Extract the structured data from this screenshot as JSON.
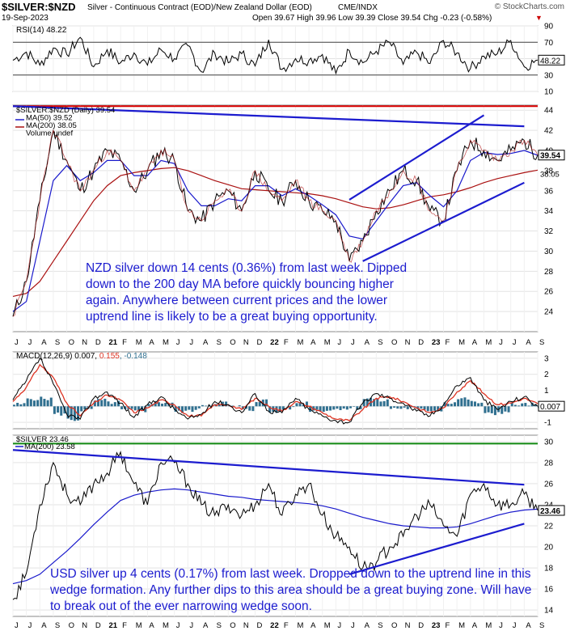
{
  "header": {
    "symbol": "$SILVER:$NZD",
    "description": "Silver - Continuous Contract (EOD)/New Zealand Dollar (EOD)",
    "exchange": "CME/INDX",
    "date": "19-Sep-2023",
    "ohlc": "Open 39.67  High 39.96  Low 39.39  Close 39.54  Chg -0.23 (-0.58%)",
    "chg_arrow": "▼",
    "brand": "© StockCharts.com"
  },
  "colors": {
    "price": "#000000",
    "ma50": "#1a1acc",
    "ma200": "#aa1111",
    "trend": "#1c1ccf",
    "resistance": "#dd0000",
    "green_line": "#118811",
    "macd_hist": "#2f6f8f",
    "signal": "#dd3322",
    "annotation": "#1c1ccf"
  },
  "x_axis_labels": [
    "J",
    "J",
    "A",
    "S",
    "O",
    "N",
    "D",
    "21",
    "F",
    "M",
    "A",
    "M",
    "J",
    "J",
    "A",
    "S",
    "O",
    "N",
    "D",
    "22",
    "F",
    "M",
    "A",
    "M",
    "J",
    "J",
    "A",
    "S",
    "O",
    "N",
    "D",
    "23",
    "F",
    "M",
    "A",
    "M",
    "J",
    "J",
    "A",
    "S"
  ],
  "chart_data": [
    {
      "type": "line",
      "panel": "rsi",
      "legend": "RSI(14) 48.22",
      "ylim": [
        10,
        90
      ],
      "ticks": [
        10,
        30,
        50,
        70,
        90
      ],
      "reference_lines": [
        30,
        70
      ],
      "last_value_label": "48.22",
      "series": [
        {
          "name": "RSI(14)",
          "values": [
            48,
            58,
            42,
            63,
            55,
            76,
            40,
            61,
            45,
            57,
            42,
            61,
            50,
            66,
            34,
            57,
            45,
            56,
            41,
            73,
            37,
            50,
            48,
            55,
            32,
            60,
            45,
            59,
            70,
            43,
            58,
            44,
            72,
            57,
            38,
            53,
            56,
            72,
            40,
            48.22
          ]
        }
      ]
    },
    {
      "type": "line",
      "panel": "price",
      "legend": [
        "$SILVER:$NZD (Daily) 39.54",
        "MA(50) 39.52",
        "MA(200) 38.05",
        "Volume undef"
      ],
      "ylim": [
        22,
        44.5
      ],
      "ticks": [
        24,
        26,
        28,
        30,
        32,
        34,
        36,
        38,
        40,
        42,
        44
      ],
      "last_value_labels": [
        "39.54",
        "38.05"
      ],
      "resistance_level": 44.4,
      "series": [
        {
          "name": "$SILVER:$NZD",
          "values": [
            23.5,
            27,
            35,
            42,
            39,
            36,
            38,
            40,
            39,
            36,
            38,
            40,
            39,
            34,
            33,
            35,
            36,
            34,
            38,
            36,
            35,
            37,
            35,
            34,
            33,
            29,
            31,
            34,
            36,
            38,
            37,
            34,
            33,
            38,
            41,
            40,
            39,
            40,
            41,
            39.54
          ]
        },
        {
          "name": "MA(50)",
          "values": [
            24,
            25,
            31,
            37,
            38.5,
            37,
            37.8,
            39,
            39,
            37.5,
            37.5,
            39,
            38.7,
            36,
            34.5,
            34.5,
            35.2,
            35,
            36.5,
            36.5,
            35.5,
            36.2,
            35.5,
            34.6,
            33.6,
            31.5,
            31.2,
            33,
            34.8,
            36.5,
            36.8,
            35.5,
            34.4,
            36,
            39,
            39.8,
            39.6,
            39.7,
            40,
            39.52
          ]
        },
        {
          "name": "MA(200)",
          "values": [
            25.5,
            25.8,
            27,
            29,
            31,
            33,
            35,
            36.5,
            37.5,
            37.8,
            38,
            38.2,
            38.3,
            38,
            37.5,
            37,
            36.6,
            36.2,
            36.1,
            36,
            35.9,
            35.8,
            35.7,
            35.5,
            35.2,
            34.8,
            34.4,
            34.2,
            34.3,
            34.6,
            35,
            35.4,
            35.6,
            35.9,
            36.3,
            36.8,
            37.2,
            37.5,
            37.8,
            38.05
          ]
        }
      ],
      "trendlines": [
        {
          "name": "upper-wedge",
          "x": [
            0,
            38
          ],
          "y": [
            44.4,
            42.4
          ]
        },
        {
          "name": "channel-upper",
          "x": [
            25,
            35
          ],
          "y": [
            35.1,
            43.5
          ]
        },
        {
          "name": "channel-lower",
          "x": [
            26,
            38
          ],
          "y": [
            29.0,
            36.8
          ]
        }
      ],
      "annotation": "NZD silver down 14 cents (0.36%) from last week. Dipped down to the 200 day MA before quickly bouncing higher again. Anywhere between current prices and the lower uptrend line is likely to be a great buying opportunity."
    },
    {
      "type": "line",
      "panel": "macd",
      "legend": [
        "MACD(12,26,9) 0.007, ",
        "0.155",
        ", -0.148"
      ],
      "ylim": [
        -1.4,
        3.4
      ],
      "ticks": [
        -1,
        0,
        1,
        2,
        3
      ],
      "last_value_label": "0.007",
      "series": [
        {
          "name": "MACD",
          "values": [
            0.4,
            1.6,
            3.0,
            1.4,
            -0.5,
            -0.8,
            0.5,
            0.9,
            0.2,
            -0.7,
            0.1,
            0.6,
            -0.2,
            -0.8,
            -0.5,
            0.3,
            0.1,
            -0.4,
            0.8,
            -0.3,
            -0.4,
            0.5,
            -0.2,
            -0.6,
            -0.9,
            -1.0,
            0.2,
            0.8,
            0.5,
            0.2,
            -0.3,
            -0.6,
            0.1,
            1.3,
            1.8,
            0.4,
            -0.2,
            0.3,
            0.6,
            0.007
          ]
        },
        {
          "name": "Signal",
          "values": [
            0.3,
            1.2,
            2.6,
            1.8,
            0.2,
            -0.6,
            0.2,
            0.7,
            0.4,
            -0.4,
            -0.1,
            0.4,
            0.1,
            -0.6,
            -0.6,
            0.1,
            0.1,
            -0.2,
            0.5,
            0,
            -0.3,
            0.3,
            0,
            -0.4,
            -0.8,
            -0.9,
            -0.2,
            0.5,
            0.6,
            0.3,
            -0.1,
            -0.4,
            -0.1,
            0.9,
            1.6,
            0.8,
            0.1,
            0.2,
            0.5,
            0.155
          ]
        }
      ]
    },
    {
      "type": "line",
      "panel": "silver_usd",
      "legend": [
        "$SILVER 23.46",
        "MA(200) 23.58"
      ],
      "ylim": [
        13.4,
        30.6
      ],
      "ticks": [
        14,
        16,
        18,
        20,
        22,
        24,
        26,
        28,
        30
      ],
      "last_value_label": "23.46",
      "resistance_level": 29.8,
      "series": [
        {
          "name": "$SILVER",
          "values": [
            15,
            17.5,
            24,
            28,
            25,
            24,
            26,
            27,
            29,
            26,
            24,
            28,
            28,
            26,
            24,
            23,
            24,
            23,
            24,
            26,
            23,
            25,
            26,
            23,
            21,
            20,
            18,
            18.5,
            20,
            21,
            23,
            24,
            22,
            21,
            25,
            26,
            24,
            24,
            25,
            23.46
          ]
        },
        {
          "name": "MA(200)",
          "values": [
            16.5,
            16.8,
            17.4,
            18.5,
            19.6,
            20.8,
            22.1,
            23.3,
            24.4,
            24.9,
            25.2,
            25.4,
            25.5,
            25.4,
            25.2,
            25.0,
            24.8,
            24.7,
            24.5,
            24.4,
            24.3,
            24.2,
            24.1,
            23.9,
            23.6,
            23.2,
            22.8,
            22.5,
            22.2,
            22.0,
            21.9,
            21.8,
            21.8,
            21.9,
            22.2,
            22.6,
            23.0,
            23.3,
            23.5,
            23.58
          ]
        }
      ],
      "trendlines": [
        {
          "name": "upper-wedge",
          "x": [
            0,
            38
          ],
          "y": [
            29.2,
            25.9
          ]
        },
        {
          "name": "lower-uptrend",
          "x": [
            25,
            38
          ],
          "y": [
            17.4,
            22.2
          ]
        }
      ],
      "annotation": "USD silver up 4 cents (0.17%) from last week. Dropped down to the uptrend line in this wedge formation. Any further dips to this area should be a great buying zone. Will have to break out of the ever narrowing wedge soon."
    }
  ]
}
